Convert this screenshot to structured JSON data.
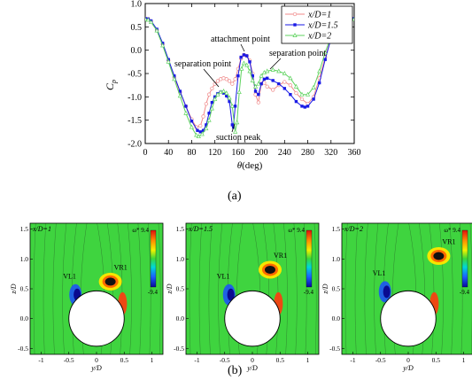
{
  "figure": {
    "caption_a": "(a)",
    "caption_b": "(b)"
  },
  "chart_data": {
    "type": "line",
    "xlabel": "θ(deg)",
    "ylabel": "Cp",
    "xlim": [
      0,
      360
    ],
    "ylim": [
      -2.0,
      1.0
    ],
    "xticks": [
      0,
      40,
      80,
      120,
      160,
      200,
      240,
      280,
      320,
      360
    ],
    "yticks": [
      1.0,
      0.5,
      0.0,
      -0.5,
      -1.0,
      -1.5,
      -2.0
    ],
    "ytick_labels": [
      "1.0",
      "0.5",
      "0.0",
      "-0.5",
      "-1.0",
      "-1.5",
      "-2.0"
    ],
    "legend_position": "top-right",
    "grid": false,
    "series": [
      {
        "name": "x/D=1",
        "color": "#f08a8a",
        "marker": "circle-open",
        "points": [
          [
            0,
            0.68
          ],
          [
            5,
            0.67
          ],
          [
            10,
            0.62
          ],
          [
            20,
            0.43
          ],
          [
            30,
            0.13
          ],
          [
            40,
            -0.22
          ],
          [
            50,
            -0.58
          ],
          [
            60,
            -0.9
          ],
          [
            70,
            -1.2
          ],
          [
            80,
            -1.48
          ],
          [
            88,
            -1.65
          ],
          [
            95,
            -1.62
          ],
          [
            100,
            -1.42
          ],
          [
            105,
            -1.15
          ],
          [
            110,
            -0.95
          ],
          [
            115,
            -0.82
          ],
          [
            120,
            -0.72
          ],
          [
            125,
            -0.66
          ],
          [
            130,
            -0.62
          ],
          [
            135,
            -0.6
          ],
          [
            140,
            -0.62
          ],
          [
            145,
            -0.66
          ],
          [
            150,
            -0.72
          ],
          [
            155,
            -0.62
          ],
          [
            160,
            -0.4
          ],
          [
            165,
            -0.18
          ],
          [
            170,
            -0.1
          ],
          [
            175,
            -0.12
          ],
          [
            180,
            -0.22
          ],
          [
            185,
            -0.5
          ],
          [
            190,
            -0.95
          ],
          [
            195,
            -1.12
          ],
          [
            200,
            -0.72
          ],
          [
            205,
            -0.7
          ],
          [
            210,
            -0.78
          ],
          [
            220,
            -0.85
          ],
          [
            230,
            -0.75
          ],
          [
            240,
            -0.68
          ],
          [
            250,
            -0.75
          ],
          [
            260,
            -0.92
          ],
          [
            270,
            -1.05
          ],
          [
            280,
            -1.15
          ],
          [
            290,
            -1.0
          ],
          [
            300,
            -0.6
          ],
          [
            310,
            -0.15
          ],
          [
            320,
            0.25
          ],
          [
            330,
            0.52
          ],
          [
            340,
            0.64
          ],
          [
            350,
            0.68
          ],
          [
            360,
            0.68
          ]
        ]
      },
      {
        "name": "x/D=1.5",
        "color": "#1a1ae6",
        "marker": "square-filled",
        "points": [
          [
            0,
            0.68
          ],
          [
            5,
            0.67
          ],
          [
            10,
            0.63
          ],
          [
            20,
            0.45
          ],
          [
            30,
            0.15
          ],
          [
            40,
            -0.2
          ],
          [
            50,
            -0.55
          ],
          [
            60,
            -0.88
          ],
          [
            70,
            -1.2
          ],
          [
            80,
            -1.52
          ],
          [
            90,
            -1.72
          ],
          [
            95,
            -1.75
          ],
          [
            100,
            -1.72
          ],
          [
            105,
            -1.6
          ],
          [
            110,
            -1.35
          ],
          [
            115,
            -1.12
          ],
          [
            120,
            -1.0
          ],
          [
            125,
            -0.93
          ],
          [
            130,
            -0.9
          ],
          [
            135,
            -0.92
          ],
          [
            140,
            -0.98
          ],
          [
            145,
            -1.1
          ],
          [
            150,
            -1.6
          ],
          [
            152,
            -1.65
          ],
          [
            155,
            -1.2
          ],
          [
            160,
            -0.55
          ],
          [
            165,
            -0.15
          ],
          [
            170,
            -0.1
          ],
          [
            175,
            -0.12
          ],
          [
            180,
            -0.25
          ],
          [
            185,
            -0.55
          ],
          [
            190,
            -0.88
          ],
          [
            195,
            -0.95
          ],
          [
            200,
            -0.72
          ],
          [
            205,
            -0.62
          ],
          [
            210,
            -0.6
          ],
          [
            220,
            -0.65
          ],
          [
            230,
            -0.72
          ],
          [
            240,
            -0.82
          ],
          [
            250,
            -0.95
          ],
          [
            260,
            -1.1
          ],
          [
            270,
            -1.2
          ],
          [
            275,
            -1.22
          ],
          [
            280,
            -1.2
          ],
          [
            290,
            -1.05
          ],
          [
            300,
            -0.7
          ],
          [
            310,
            -0.2
          ],
          [
            320,
            0.25
          ],
          [
            330,
            0.52
          ],
          [
            340,
            0.65
          ],
          [
            350,
            0.68
          ],
          [
            360,
            0.68
          ]
        ]
      },
      {
        "name": "x/D=2",
        "color": "#5fd35f",
        "marker": "triangle-open",
        "points": [
          [
            0,
            0.66
          ],
          [
            5,
            0.65
          ],
          [
            10,
            0.6
          ],
          [
            20,
            0.42
          ],
          [
            30,
            0.1
          ],
          [
            40,
            -0.25
          ],
          [
            50,
            -0.62
          ],
          [
            60,
            -0.98
          ],
          [
            70,
            -1.35
          ],
          [
            80,
            -1.65
          ],
          [
            88,
            -1.82
          ],
          [
            92,
            -1.85
          ],
          [
            98,
            -1.8
          ],
          [
            105,
            -1.68
          ],
          [
            110,
            -1.5
          ],
          [
            115,
            -1.25
          ],
          [
            120,
            -1.05
          ],
          [
            125,
            -0.95
          ],
          [
            130,
            -0.9
          ],
          [
            135,
            -0.88
          ],
          [
            140,
            -0.92
          ],
          [
            145,
            -1.02
          ],
          [
            150,
            -1.2
          ],
          [
            155,
            -1.75
          ],
          [
            158,
            -1.55
          ],
          [
            162,
            -0.9
          ],
          [
            166,
            -0.4
          ],
          [
            170,
            -0.28
          ],
          [
            175,
            -0.32
          ],
          [
            180,
            -0.45
          ],
          [
            185,
            -0.65
          ],
          [
            190,
            -0.78
          ],
          [
            195,
            -0.72
          ],
          [
            200,
            -0.55
          ],
          [
            205,
            -0.48
          ],
          [
            210,
            -0.45
          ],
          [
            220,
            -0.42
          ],
          [
            230,
            -0.45
          ],
          [
            240,
            -0.5
          ],
          [
            250,
            -0.6
          ],
          [
            260,
            -0.78
          ],
          [
            270,
            -0.95
          ],
          [
            280,
            -0.95
          ],
          [
            290,
            -0.8
          ],
          [
            300,
            -0.45
          ],
          [
            310,
            -0.05
          ],
          [
            320,
            0.3
          ],
          [
            330,
            0.52
          ],
          [
            340,
            0.62
          ],
          [
            350,
            0.65
          ],
          [
            360,
            0.66
          ]
        ]
      }
    ],
    "annotations": [
      {
        "text": "attachment point"
      },
      {
        "text": "separation point"
      },
      {
        "text": "separation point"
      },
      {
        "text": "suction peak"
      }
    ]
  },
  "contour_panels": [
    {
      "title": "x/D=1",
      "legend_title": "ω*",
      "legend_max": "9.4",
      "legend_min": "-9.4",
      "vortex_labels": [
        "VL1",
        "VR1"
      ],
      "xlabel": "y/D",
      "ylabel": "z/D",
      "xticks": [
        "-1",
        "-0.5",
        "0",
        "0.5",
        "1"
      ],
      "yticks": [
        "1.5",
        "1.0",
        "0.5",
        "0.0",
        "-0.5"
      ]
    },
    {
      "title": "x/D=1.5",
      "legend_title": "ω*",
      "legend_max": "9.4",
      "legend_min": "-9.4",
      "vortex_labels": [
        "VL1",
        "VR1"
      ],
      "xlabel": "y/D",
      "ylabel": "z/D",
      "xticks": [
        "-1",
        "-0.5",
        "0",
        "0.5",
        "1"
      ],
      "yticks": [
        "1.5",
        "1.0",
        "0.5",
        "0.0",
        "-0.5"
      ]
    },
    {
      "title": "x/D=2",
      "legend_title": "ω*",
      "legend_max": "9.4",
      "legend_min": "-9.4",
      "vortex_labels": [
        "VL1",
        "VR1"
      ],
      "xlabel": "y/D",
      "ylabel": "z/D",
      "xticks": [
        "-1",
        "-0.5",
        "0",
        "0.5",
        "1"
      ],
      "yticks": [
        "1.5",
        "1.0",
        "0.5",
        "0.0",
        "-0.5"
      ]
    }
  ]
}
